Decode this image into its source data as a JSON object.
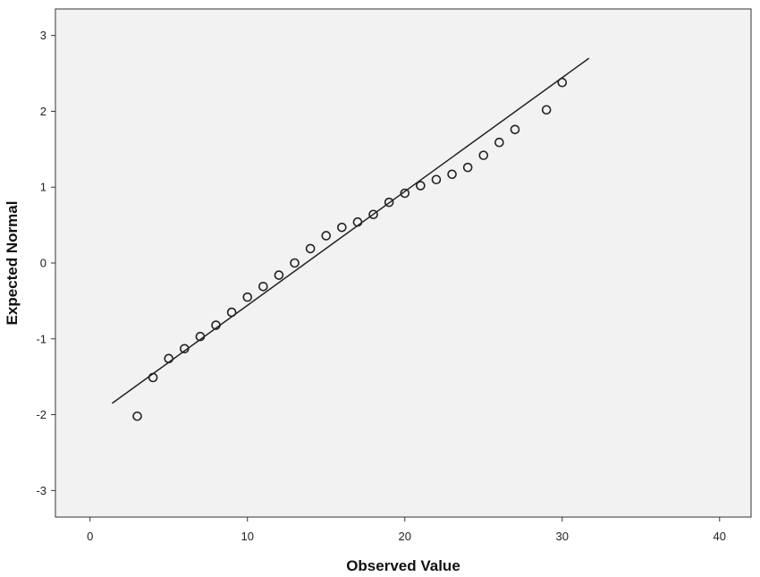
{
  "chart_data": {
    "type": "scatter",
    "title": "",
    "xlabel": "Observed Value",
    "ylabel": "Expected Normal",
    "xlim": [
      -2.2,
      42
    ],
    "ylim": [
      -3.35,
      3.35
    ],
    "x_ticks": [
      0,
      10,
      20,
      30,
      40
    ],
    "y_ticks": [
      -3,
      -2,
      -1,
      0,
      1,
      2,
      3
    ],
    "grid": false,
    "legend": "none",
    "points": [
      {
        "x": 3,
        "y": -2.02
      },
      {
        "x": 4,
        "y": -1.51
      },
      {
        "x": 5,
        "y": -1.26
      },
      {
        "x": 6,
        "y": -1.13
      },
      {
        "x": 7,
        "y": -0.97
      },
      {
        "x": 8,
        "y": -0.82
      },
      {
        "x": 9,
        "y": -0.65
      },
      {
        "x": 10,
        "y": -0.45
      },
      {
        "x": 11,
        "y": -0.31
      },
      {
        "x": 12,
        "y": -0.16
      },
      {
        "x": 13,
        "y": 0.0
      },
      {
        "x": 14,
        "y": 0.19
      },
      {
        "x": 15,
        "y": 0.36
      },
      {
        "x": 16,
        "y": 0.47
      },
      {
        "x": 17,
        "y": 0.54
      },
      {
        "x": 18,
        "y": 0.64
      },
      {
        "x": 19,
        "y": 0.8
      },
      {
        "x": 20,
        "y": 0.92
      },
      {
        "x": 21,
        "y": 1.02
      },
      {
        "x": 22,
        "y": 1.1
      },
      {
        "x": 23,
        "y": 1.17
      },
      {
        "x": 24,
        "y": 1.26
      },
      {
        "x": 25,
        "y": 1.42
      },
      {
        "x": 26,
        "y": 1.59
      },
      {
        "x": 27,
        "y": 1.76
      },
      {
        "x": 29,
        "y": 2.02
      },
      {
        "x": 30,
        "y": 2.38
      }
    ],
    "reference_line": {
      "x": [
        1.4,
        31.7
      ],
      "y": [
        -1.85,
        2.7
      ]
    },
    "colors": {
      "plot_background": "#f2f2f2",
      "frame": "#333333",
      "marker": "#222222",
      "line": "#222222"
    }
  }
}
